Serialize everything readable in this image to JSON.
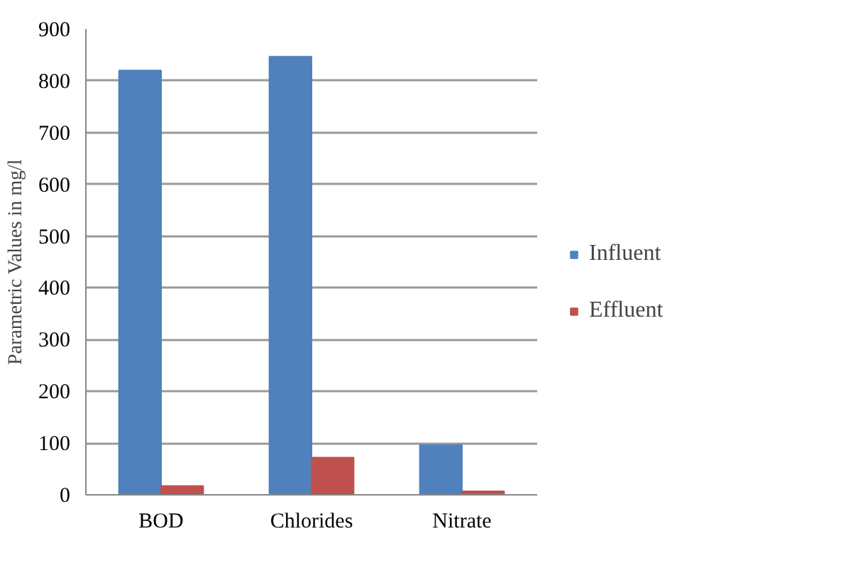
{
  "chart_data": {
    "type": "bar",
    "ylabel": "Parametric Values in mg/l",
    "categories": [
      "BOD",
      "Chlorides",
      "Nitrate"
    ],
    "series": [
      {
        "name": "Influent",
        "color": "#4f81bd",
        "values": [
          820,
          847,
          96
        ]
      },
      {
        "name": "Effluent",
        "color": "#c0504d",
        "values": [
          17,
          72,
          7
        ]
      }
    ],
    "ylim": [
      0,
      900
    ],
    "yticks": [
      0,
      100,
      200,
      300,
      400,
      500,
      600,
      700,
      800,
      900
    ],
    "grid": "y",
    "legend": "right"
  }
}
